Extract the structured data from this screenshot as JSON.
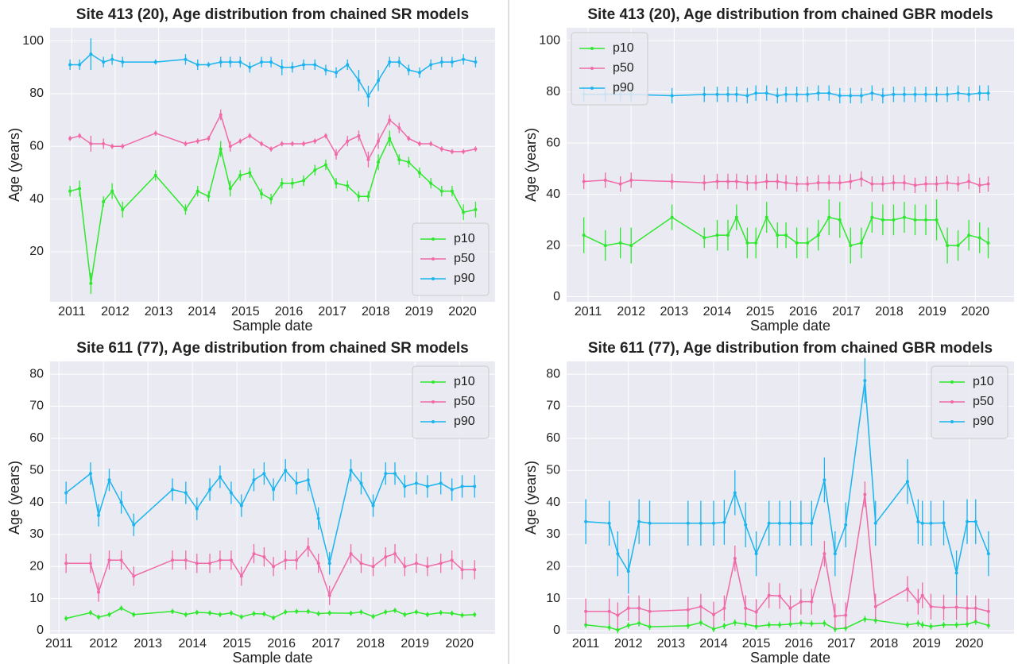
{
  "chart_data": [
    {
      "type": "line",
      "title": "Site 413 (20), Age distribution from chained SR models",
      "xlabel": "Sample date",
      "ylabel": "Age (years)",
      "x": [
        2010.96,
        2011.18,
        2011.44,
        2011.73,
        2011.93,
        2012.17,
        2012.93,
        2013.62,
        2013.9,
        2014.15,
        2014.43,
        2014.65,
        2014.88,
        2015.1,
        2015.37,
        2015.59,
        2015.84,
        2016.08,
        2016.34,
        2016.6,
        2016.85,
        2017.09,
        2017.35,
        2017.61,
        2017.83,
        2018.06,
        2018.32,
        2018.54,
        2018.76,
        2019.01,
        2019.27,
        2019.52,
        2019.76,
        2020.02,
        2020.3
      ],
      "xlim": [
        2010.5,
        2020.75
      ],
      "xticks": [
        2011,
        2012,
        2013,
        2014,
        2015,
        2016,
        2017,
        2018,
        2019,
        2020
      ],
      "ylim": [
        1,
        105
      ],
      "yticks": [
        20,
        40,
        60,
        80,
        100
      ],
      "grid": true,
      "legend": "lower right",
      "series": [
        {
          "name": "p10",
          "color": "#2ee82e",
          "values": [
            43,
            44,
            8,
            39,
            43,
            36,
            49,
            36,
            43,
            41,
            59,
            44,
            49,
            50,
            42,
            40,
            46,
            46,
            47,
            51,
            53,
            46,
            45,
            41,
            41,
            54,
            63,
            55,
            54,
            50,
            46,
            43,
            43,
            35,
            36
          ],
          "errors": [
            2,
            3,
            4,
            2,
            3,
            3,
            2,
            2,
            2,
            2,
            3,
            3,
            2,
            2,
            2,
            2,
            2,
            2,
            2,
            2,
            2,
            2,
            2,
            2,
            2,
            3,
            3,
            2,
            2,
            2,
            2,
            2,
            2,
            3,
            3
          ]
        },
        {
          "name": "p50",
          "color": "#f06aa8",
          "values": [
            63,
            64,
            61,
            61,
            60,
            60,
            65,
            61,
            62,
            63,
            72,
            60,
            62,
            64,
            61,
            59,
            61,
            61,
            61,
            62,
            64,
            57,
            62,
            64,
            55,
            62,
            70,
            67,
            63,
            61,
            61,
            59,
            58,
            58,
            59
          ],
          "errors": [
            1,
            1,
            3,
            2,
            1,
            1,
            1,
            1,
            1,
            1,
            2,
            2,
            1,
            1,
            1,
            1,
            1,
            1,
            1,
            1,
            1,
            2,
            2,
            2,
            3,
            3,
            2,
            2,
            1,
            1,
            1,
            1,
            1,
            1,
            1
          ]
        },
        {
          "name": "p90",
          "color": "#1ab4ee",
          "values": [
            91,
            91,
            95,
            92,
            93,
            92,
            92,
            93,
            91,
            91,
            92,
            92,
            92,
            90,
            92,
            92,
            90,
            90,
            91,
            91,
            89,
            88,
            91,
            85,
            79,
            85,
            92,
            92,
            89,
            88,
            91,
            92,
            92,
            93,
            92
          ],
          "errors": [
            2,
            2,
            6,
            2,
            2,
            2,
            1,
            2,
            2,
            1,
            2,
            2,
            2,
            2,
            2,
            2,
            3,
            2,
            2,
            2,
            2,
            2,
            2,
            4,
            4,
            4,
            2,
            2,
            2,
            2,
            2,
            2,
            2,
            2,
            2
          ]
        }
      ]
    },
    {
      "type": "line",
      "title": "Site 413 (20), Age distribution from chained GBR models",
      "xlabel": "Sample date",
      "ylabel": "Age (years)",
      "x": [
        2010.9,
        2011.4,
        2011.75,
        2012.0,
        2012.95,
        2013.7,
        2014.0,
        2014.25,
        2014.45,
        2014.7,
        2014.9,
        2015.15,
        2015.4,
        2015.6,
        2015.85,
        2016.1,
        2016.35,
        2016.6,
        2016.85,
        2017.1,
        2017.35,
        2017.6,
        2017.85,
        2018.1,
        2018.35,
        2018.6,
        2018.85,
        2019.1,
        2019.35,
        2019.6,
        2019.85,
        2020.1,
        2020.3
      ],
      "xlim": [
        2010.5,
        2020.9
      ],
      "xticks": [
        2011,
        2012,
        2013,
        2014,
        2015,
        2016,
        2017,
        2018,
        2019,
        2020
      ],
      "ylim": [
        -2,
        105
      ],
      "yticks": [
        0,
        20,
        40,
        60,
        80,
        100
      ],
      "grid": true,
      "legend": "upper left",
      "series": [
        {
          "name": "p10",
          "color": "#2ee82e",
          "values": [
            24,
            20,
            21,
            20,
            31,
            23,
            24,
            24,
            31,
            21,
            21,
            31,
            24,
            24,
            21,
            21,
            24,
            31,
            30,
            20,
            21,
            31,
            30,
            30,
            31,
            30,
            30,
            30,
            20,
            20,
            24,
            23,
            21
          ],
          "errors": [
            7,
            6,
            6,
            7,
            5,
            4,
            6,
            6,
            5,
            6,
            6,
            6,
            5,
            5,
            6,
            6,
            6,
            7,
            7,
            7,
            6,
            6,
            6,
            6,
            6,
            6,
            6,
            8,
            7,
            6,
            6,
            6,
            6
          ]
        },
        {
          "name": "p50",
          "color": "#f06aa8",
          "values": [
            45,
            45.5,
            44,
            45.5,
            45,
            44.5,
            45,
            45,
            45,
            44.5,
            44.5,
            45,
            45,
            44.5,
            44,
            44,
            44.5,
            44.5,
            44.5,
            45,
            46,
            44,
            44,
            44.5,
            44.5,
            43.5,
            44,
            44,
            44.5,
            44,
            45,
            43.5,
            44
          ],
          "errors": [
            3,
            3,
            3,
            3,
            3,
            3,
            3,
            3,
            3,
            3,
            3,
            3,
            3,
            3,
            3,
            3,
            3,
            3,
            3,
            3,
            3,
            3,
            3,
            3,
            3,
            3,
            3,
            3,
            3,
            3,
            3,
            3,
            3
          ]
        },
        {
          "name": "p90",
          "color": "#1ab4ee",
          "values": [
            79,
            79,
            79,
            79,
            78.5,
            79,
            79,
            79,
            79,
            78.5,
            79.5,
            79.5,
            78.5,
            79,
            79,
            79,
            79.5,
            79.5,
            78.5,
            78.5,
            78.5,
            79.5,
            78.5,
            79,
            79,
            79,
            79,
            79,
            79,
            79.5,
            79,
            79.5,
            79.5
          ],
          "errors": [
            3,
            3,
            3,
            3,
            3,
            3,
            3,
            3,
            3,
            3,
            3,
            3,
            3,
            3,
            3,
            3,
            3,
            3,
            3,
            3,
            3,
            3,
            3,
            3,
            3,
            3,
            3,
            3,
            3,
            3,
            3,
            3,
            3
          ]
        }
      ]
    },
    {
      "type": "line",
      "title": "Site 611 (77), Age distribution from chained SR models",
      "xlabel": "Sample date",
      "ylabel": "Age (years)",
      "x": [
        2011.16,
        2011.71,
        2011.89,
        2012.13,
        2012.4,
        2012.68,
        2013.55,
        2013.85,
        2014.1,
        2014.39,
        2014.62,
        2014.87,
        2015.1,
        2015.38,
        2015.61,
        2015.82,
        2016.09,
        2016.34,
        2016.6,
        2016.83,
        2017.08,
        2017.56,
        2017.79,
        2018.06,
        2018.34,
        2018.55,
        2018.77,
        2019.03,
        2019.28,
        2019.58,
        2019.83,
        2020.06,
        2020.34
      ],
      "xlim": [
        2010.8,
        2020.8
      ],
      "xticks": [
        2011,
        2012,
        2013,
        2014,
        2015,
        2016,
        2017,
        2018,
        2019,
        2020
      ],
      "ylim": [
        -1,
        84
      ],
      "yticks": [
        0,
        10,
        20,
        30,
        40,
        50,
        60,
        70,
        80
      ],
      "grid": true,
      "legend": "upper right",
      "series": [
        {
          "name": "p10",
          "color": "#2ee82e",
          "values": [
            3.8,
            5.6,
            4.2,
            5,
            7,
            5,
            6,
            5,
            5.7,
            5.5,
            5,
            5.5,
            4.3,
            5.3,
            5.2,
            4,
            5.8,
            6,
            6,
            5.3,
            5.5,
            5.4,
            5.8,
            4.4,
            5.8,
            6.3,
            5,
            5.8,
            5,
            5.6,
            5.4,
            4.8,
            5
          ],
          "errors": [
            0.8,
            0.8,
            0.8,
            0.8,
            0.8,
            0.8,
            0.8,
            0.8,
            0.8,
            0.8,
            0.8,
            0.8,
            0.8,
            0.8,
            0.8,
            0.8,
            0.8,
            0.8,
            0.8,
            0.8,
            0.8,
            0.8,
            0.8,
            0.8,
            0.8,
            0.8,
            0.8,
            0.8,
            0.8,
            0.8,
            0.8,
            0.8,
            0.8
          ]
        },
        {
          "name": "p50",
          "color": "#f06aa8",
          "values": [
            21,
            21,
            12,
            22,
            22,
            17,
            22,
            22,
            21,
            21,
            22,
            22,
            17,
            24,
            23,
            20,
            22,
            22,
            26,
            21,
            11,
            24,
            21,
            20,
            23,
            24,
            20,
            21,
            20,
            21,
            22,
            19,
            19
          ],
          "errors": [
            3,
            3,
            3,
            3,
            3,
            3,
            3,
            3,
            3,
            3,
            3,
            3,
            3,
            3,
            3,
            3,
            3,
            3,
            3,
            3,
            3,
            3,
            3,
            3,
            3,
            3,
            3,
            3,
            3,
            3,
            3,
            3,
            3
          ]
        },
        {
          "name": "p90",
          "color": "#1ab4ee",
          "values": [
            43,
            49,
            36,
            47,
            40,
            33,
            44,
            43,
            38,
            44,
            48,
            43,
            39,
            47,
            49,
            44,
            50,
            46,
            47,
            35,
            21,
            50,
            46,
            39,
            49,
            49,
            45,
            46,
            45,
            46,
            44,
            45,
            45
          ],
          "errors": [
            3.5,
            3.5,
            3.5,
            3.5,
            3.5,
            3.5,
            3.5,
            3.5,
            3.5,
            3.5,
            3.5,
            3.5,
            3.5,
            3.5,
            3.5,
            3.5,
            3.5,
            3.5,
            3.5,
            3.5,
            3.5,
            3.5,
            3.5,
            3.5,
            3.5,
            3.5,
            3.5,
            3.5,
            3.5,
            3.5,
            3.5,
            3.5,
            3.5
          ]
        }
      ]
    },
    {
      "type": "line",
      "title": "Site 611 (77), Age distribution from chained GBR models",
      "xlabel": "Sample date",
      "ylabel": "Age (years)",
      "x": [
        2011.0,
        2011.55,
        2011.75,
        2012.0,
        2012.25,
        2012.5,
        2013.4,
        2013.7,
        2014.0,
        2014.25,
        2014.5,
        2014.75,
        2015.0,
        2015.3,
        2015.55,
        2015.8,
        2016.05,
        2016.3,
        2016.6,
        2016.85,
        2017.1,
        2017.55,
        2017.8,
        2018.55,
        2018.8,
        2018.9,
        2019.1,
        2019.4,
        2019.7,
        2019.95,
        2020.15,
        2020.45
      ],
      "xlim": [
        2010.55,
        2021.05
      ],
      "xticks": [
        2011,
        2012,
        2013,
        2014,
        2015,
        2016,
        2017,
        2018,
        2019,
        2020
      ],
      "ylim": [
        -1,
        84
      ],
      "yticks": [
        0,
        10,
        20,
        30,
        40,
        50,
        60,
        70,
        80
      ],
      "grid": true,
      "legend": "upper right",
      "series": [
        {
          "name": "p10",
          "color": "#2ee82e",
          "values": [
            1.8,
            1,
            0.2,
            1.6,
            2.3,
            1.2,
            1.5,
            2.5,
            0.5,
            1.5,
            2.5,
            2,
            1.3,
            1.8,
            1.8,
            2,
            2.4,
            2.2,
            2.3,
            0.5,
            0.8,
            3.6,
            3.2,
            1.8,
            2.3,
            1.8,
            1.3,
            1.8,
            1.8,
            2,
            2.8,
            1.6
          ],
          "errors": [
            1,
            1,
            1,
            1,
            1,
            1,
            1,
            1,
            1,
            1,
            1,
            1,
            1,
            1,
            1,
            1,
            1,
            1,
            1,
            1,
            1,
            1,
            1,
            1,
            1,
            1,
            1,
            1,
            1,
            1,
            1,
            1
          ]
        },
        {
          "name": "p50",
          "color": "#f06aa8",
          "values": [
            6,
            6,
            4.8,
            7,
            7,
            6,
            6.5,
            7.5,
            5,
            7,
            22.5,
            7,
            5.8,
            11,
            10.8,
            7,
            9,
            9,
            24,
            4.5,
            4.8,
            42.5,
            7.5,
            13,
            9,
            11,
            7.5,
            7.2,
            7.3,
            7,
            7,
            6
          ],
          "errors": [
            4,
            4,
            4,
            4,
            4,
            4,
            4,
            4,
            4,
            4,
            4,
            4,
            4,
            4,
            4,
            4,
            4,
            4,
            4,
            4,
            4,
            4,
            4,
            4,
            4,
            4,
            4,
            4,
            4,
            4,
            4,
            4
          ]
        },
        {
          "name": "p90",
          "color": "#1ab4ee",
          "values": [
            34,
            33.5,
            24,
            18.5,
            34,
            33.5,
            33.5,
            33.5,
            33.5,
            33.8,
            43,
            33,
            24,
            33.5,
            33.5,
            33.5,
            33.5,
            33.5,
            47,
            24,
            33,
            78,
            33.5,
            46.5,
            34,
            33.5,
            33.5,
            33.6,
            18,
            34,
            34,
            24
          ],
          "errors": [
            7,
            7,
            7,
            7,
            7,
            7,
            7,
            7,
            7,
            7,
            7,
            7,
            7,
            7,
            7,
            7,
            7,
            7,
            7,
            7,
            7,
            7,
            7,
            7,
            7,
            7,
            7,
            7,
            7,
            7,
            7,
            7
          ]
        }
      ]
    }
  ]
}
